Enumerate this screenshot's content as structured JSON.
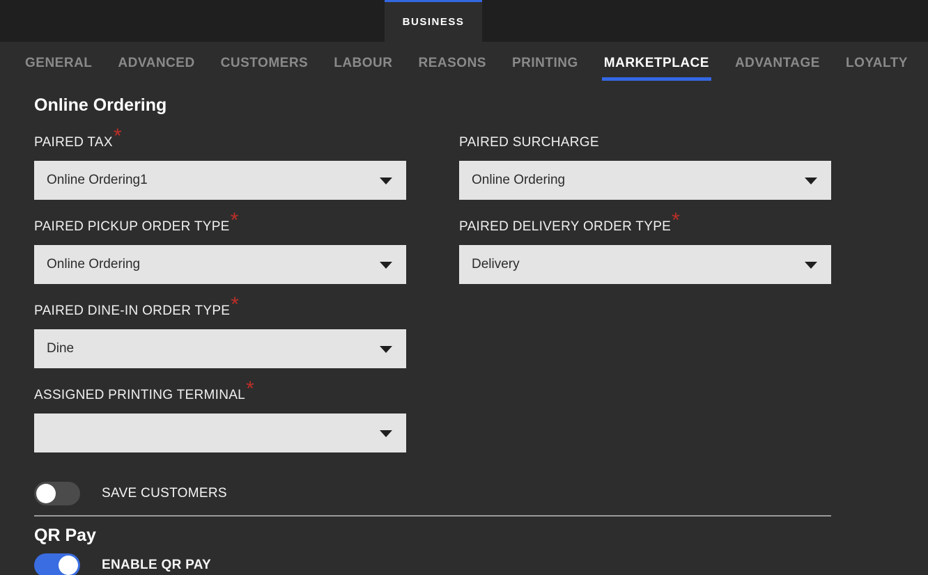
{
  "header": {
    "business_tab_label": "BUSINESS"
  },
  "nav": {
    "active_tab": "MARKETPLACE",
    "tabs": [
      {
        "label": "GENERAL"
      },
      {
        "label": "ADVANCED"
      },
      {
        "label": "CUSTOMERS"
      },
      {
        "label": "LABOUR"
      },
      {
        "label": "REASONS"
      },
      {
        "label": "PRINTING"
      },
      {
        "label": "MARKETPLACE"
      },
      {
        "label": "ADVANTAGE"
      },
      {
        "label": "LOYALTY"
      }
    ]
  },
  "sections": {
    "online_ordering_title": "Online Ordering",
    "qr_pay_title": "QR Pay"
  },
  "required_marker": "*",
  "fields": {
    "paired_tax": {
      "label": "PAIRED TAX",
      "required": true,
      "value": "Online Ordering1"
    },
    "paired_surcharge": {
      "label": "PAIRED SURCHARGE",
      "required": false,
      "value": "Online Ordering"
    },
    "paired_pickup_order_type": {
      "label": "PAIRED PICKUP ORDER TYPE",
      "required": true,
      "value": "Online Ordering"
    },
    "paired_delivery_order_type": {
      "label": "PAIRED DELIVERY ORDER TYPE",
      "required": true,
      "value": "Delivery"
    },
    "paired_dine_in_order_type": {
      "label": "PAIRED DINE-IN ORDER TYPE",
      "required": true,
      "value": "Dine"
    },
    "assigned_printing_terminal": {
      "label": "ASSIGNED PRINTING TERMINAL",
      "required": true,
      "value": ""
    }
  },
  "toggles": {
    "save_customers": {
      "label": "SAVE CUSTOMERS",
      "on": false
    },
    "enable_qr_pay": {
      "label": "ENABLE QR PAY",
      "on": true
    }
  },
  "colors": {
    "accent-blue": "#3468e3",
    "toggle-blue": "#3a6de1",
    "required-red": "#bb2f28",
    "header-bg": "#1f1f1f",
    "body-bg": "#2d2d2d",
    "select-bg": "#e4e4e4"
  }
}
